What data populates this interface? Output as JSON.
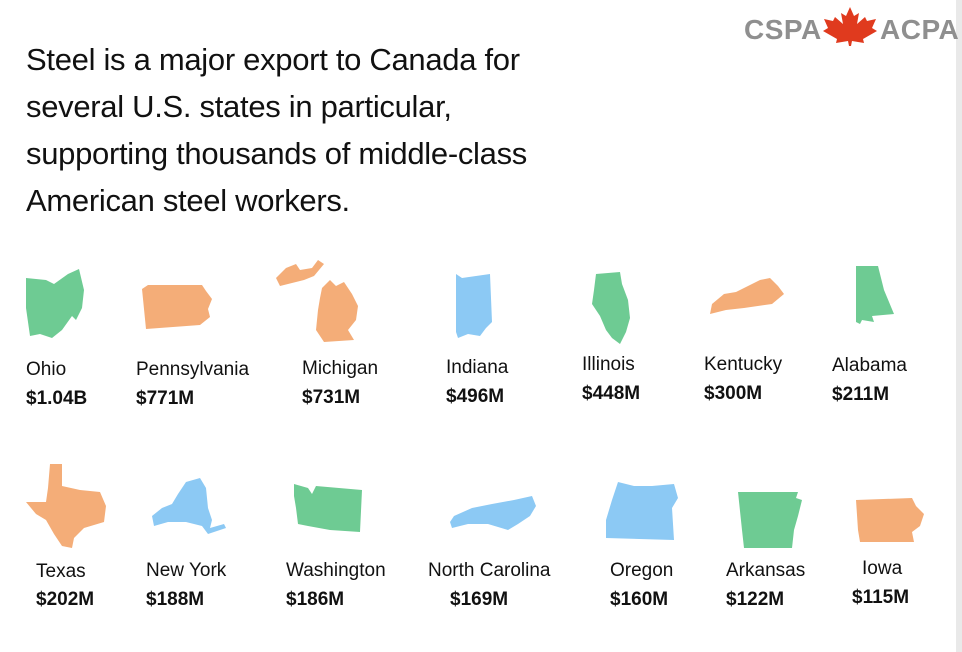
{
  "title": "Steel is a major export to Canada for several U.S. states in particular, supporting thousands of middle-class American steel workers.",
  "logo": {
    "left": "CSPA",
    "right": "ACPA",
    "leaf_color": "#e03a1e",
    "text_color": "#8f8f8f"
  },
  "colors": {
    "green": "#6ecb93",
    "orange": "#f4ad78",
    "blue": "#8cc9f4"
  },
  "states": [
    {
      "name": "Ohio",
      "value": "$1.04B",
      "color": "green",
      "icon": "ohio-shape"
    },
    {
      "name": "Pennsylvania",
      "value": "$771M",
      "color": "orange",
      "icon": "pennsylvania-shape"
    },
    {
      "name": "Michigan",
      "value": "$731M",
      "color": "orange",
      "icon": "michigan-shape"
    },
    {
      "name": "Indiana",
      "value": "$496M",
      "color": "blue",
      "icon": "indiana-shape"
    },
    {
      "name": "Illinois",
      "value": "$448M",
      "color": "green",
      "icon": "illinois-shape"
    },
    {
      "name": "Kentucky",
      "value": "$300M",
      "color": "orange",
      "icon": "kentucky-shape"
    },
    {
      "name": "Alabama",
      "value": "$211M",
      "color": "green",
      "icon": "alabama-shape"
    },
    {
      "name": "Texas",
      "value": "$202M",
      "color": "orange",
      "icon": "texas-shape"
    },
    {
      "name": "New York",
      "value": "$188M",
      "color": "blue",
      "icon": "new-york-shape"
    },
    {
      "name": "Washington",
      "value": "$186M",
      "color": "green",
      "icon": "washington-shape"
    },
    {
      "name": "North Carolina",
      "value": "$169M",
      "color": "blue",
      "icon": "north-carolina-shape"
    },
    {
      "name": "Oregon",
      "value": "$160M",
      "color": "blue",
      "icon": "oregon-shape"
    },
    {
      "name": "Arkansas",
      "value": "$122M",
      "color": "green",
      "icon": "arkansas-shape"
    },
    {
      "name": "Iowa",
      "value": "$115M",
      "color": "orange",
      "icon": "iowa-shape"
    }
  ]
}
